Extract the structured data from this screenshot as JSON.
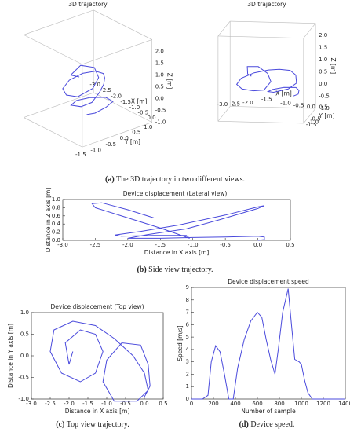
{
  "chart_data": [
    {
      "type": "line3d",
      "title": "3D trajectory",
      "color": "#4a4adc",
      "x": [
        -1.9,
        -2.0,
        -2.1,
        -1.7,
        -1.3,
        -1.1,
        -1.3,
        -1.7,
        -2.2,
        -2.5,
        -2.4,
        -1.9,
        -1.3,
        -0.8,
        -0.3,
        0.0,
        0.1,
        -0.2,
        -0.8,
        -1.1,
        -1.0,
        -0.6,
        -0.1,
        0.1,
        0.15,
        0.0
      ],
      "y": [
        0.1,
        -0.2,
        0.3,
        0.6,
        0.5,
        0.1,
        -0.4,
        -0.6,
        -0.4,
        0.1,
        0.6,
        0.8,
        0.7,
        0.4,
        0.0,
        -0.4,
        -0.8,
        -1.05,
        -1.05,
        -0.6,
        -0.1,
        0.3,
        0.25,
        -0.2,
        -0.7,
        -0.95
      ],
      "z": [
        0.55,
        0.7,
        0.9,
        0.85,
        0.6,
        0.35,
        0.1,
        0.1,
        0.12,
        0.2,
        0.35,
        0.55,
        0.7,
        0.8,
        0.85,
        0.75,
        0.5,
        0.3,
        0.15,
        0.08,
        0.07,
        0.08,
        0.1,
        0.08,
        0.03,
        0.0
      ],
      "xlim": [
        -3,
        0.5
      ],
      "ylim": [
        -1.5,
        1.5
      ],
      "zlim": [
        -1,
        2.5
      ],
      "xticks": [
        {
          "value": -3,
          "label": "-3.0"
        },
        -2.5,
        {
          "value": -2,
          "label": "-2.0"
        },
        -1.5,
        {
          "value": -1,
          "label": "-1.0"
        },
        -0.5,
        {
          "value": 0,
          "label": "0.0"
        }
      ],
      "yticks": [
        -1.5,
        {
          "value": -1,
          "label": "-1.0"
        },
        -0.5,
        {
          "value": 0,
          "label": "0.0"
        },
        0.5,
        {
          "value": 1,
          "label": "1.0"
        }
      ],
      "zticks": [
        {
          "value": -1,
          "label": "-1.0"
        },
        -0.5,
        {
          "value": 0,
          "label": "0.0"
        },
        0.5,
        {
          "value": 1,
          "label": "1.0"
        },
        1.5,
        {
          "value": 2,
          "label": "2.0"
        }
      ],
      "xlabel": "X [m]",
      "ylabel": "Y [m]",
      "zlabel": "Z [m]"
    },
    {
      "type": "line3d",
      "title": "3D trajectory",
      "color": "#4a4adc",
      "x": [
        -1.9,
        -2.0,
        -2.1,
        -1.7,
        -1.3,
        -1.1,
        -1.3,
        -1.7,
        -2.2,
        -2.5,
        -2.4,
        -1.9,
        -1.3,
        -0.8,
        -0.3,
        0.0,
        0.1,
        -0.2,
        -0.8,
        -1.1,
        -1.0,
        -0.6,
        -0.1,
        0.1,
        0.15,
        0.0
      ],
      "y": [
        0.1,
        -0.2,
        0.3,
        0.6,
        0.5,
        0.1,
        -0.4,
        -0.6,
        -0.4,
        0.1,
        0.6,
        0.8,
        0.7,
        0.4,
        0.0,
        -0.4,
        -0.8,
        -1.05,
        -1.05,
        -0.6,
        -0.1,
        0.3,
        0.25,
        -0.2,
        -0.7,
        -0.95
      ],
      "z": [
        0.55,
        0.7,
        0.9,
        0.85,
        0.6,
        0.35,
        0.1,
        0.1,
        0.12,
        0.2,
        0.35,
        0.55,
        0.7,
        0.8,
        0.85,
        0.75,
        0.5,
        0.3,
        0.15,
        0.08,
        0.07,
        0.08,
        0.1,
        0.08,
        0.03,
        0.0
      ],
      "xlim": [
        -3,
        0.5
      ],
      "ylim": [
        -1.5,
        1.5
      ],
      "zlim": [
        -1,
        2.5
      ],
      "xticks": [
        {
          "value": -3,
          "label": "-3.0"
        },
        -2.5,
        {
          "value": -2,
          "label": "-2.0"
        },
        -1.5,
        {
          "value": -1,
          "label": "-1.0"
        },
        -0.5,
        {
          "value": 0,
          "label": "0.0"
        },
        0.5
      ],
      "yticks": [
        -1.5,
        {
          "value": -1,
          "label": "-1.0"
        },
        -0.5
      ],
      "zticks": [
        {
          "value": -1,
          "label": "-1.0"
        },
        -0.5,
        {
          "value": 0,
          "label": "0.0"
        },
        0.5,
        {
          "value": 1,
          "label": "1.0"
        },
        1.5,
        {
          "value": 2,
          "label": "2.0"
        }
      ],
      "xlabel": "X [m]",
      "ylabel": "Y [m]",
      "zlabel": "Z [m]"
    },
    {
      "type": "line",
      "title": "Device displacement (Lateral view)",
      "x": [
        -1.6,
        -2.0,
        -2.4,
        -2.55,
        -2.5,
        -2.0,
        -1.5,
        -1.05,
        -1.1,
        -1.6,
        -2.1,
        -2.2,
        -1.8,
        -1.2,
        -0.5,
        0.0,
        0.1,
        0.0,
        -0.6,
        -1.1,
        -1.7,
        -2.0,
        -1.5,
        -1.0,
        -0.5,
        0.0,
        0.1,
        0.1,
        0.0
      ],
      "series": [
        {
          "color": "#4a4adc",
          "values": [
            0.55,
            0.75,
            0.92,
            0.9,
            0.8,
            0.55,
            0.3,
            0.05,
            0.12,
            0.12,
            0.1,
            0.13,
            0.22,
            0.38,
            0.62,
            0.82,
            0.85,
            0.78,
            0.5,
            0.28,
            0.14,
            0.05,
            0.05,
            0.07,
            0.08,
            0.1,
            0.08,
            0.02,
            0.0
          ]
        }
      ],
      "xlim": [
        -3,
        0.5
      ],
      "ylim": [
        0,
        1
      ],
      "xticks": [
        {
          "value": -3,
          "label": "-3.0"
        },
        -2.5,
        {
          "value": -2,
          "label": "-2.0"
        },
        -1.5,
        {
          "value": -1,
          "label": "-1.0"
        },
        -0.5,
        {
          "value": 0,
          "label": "0.0"
        },
        0.5
      ],
      "yticks": [
        {
          "value": 0,
          "label": "0.0"
        },
        0.2,
        0.4,
        0.6,
        0.8,
        {
          "value": 1,
          "label": "1.0"
        }
      ],
      "xlabel": "Distance in X axis [m]",
      "ylabel": "Distance in Z axis [m]"
    },
    {
      "type": "line",
      "title": "Device displacement (Top view)",
      "x": [
        -1.9,
        -2.0,
        -2.1,
        -1.7,
        -1.3,
        -1.1,
        -1.3,
        -1.7,
        -2.2,
        -2.5,
        -2.4,
        -1.9,
        -1.3,
        -0.8,
        -0.3,
        0.0,
        0.1,
        -0.2,
        -0.8,
        -1.1,
        -1.0,
        -0.6,
        -0.1,
        0.1,
        0.15,
        0.0
      ],
      "series": [
        {
          "color": "#4a4adc",
          "values": [
            0.1,
            -0.2,
            0.3,
            0.6,
            0.5,
            0.1,
            -0.4,
            -0.6,
            -0.4,
            0.1,
            0.6,
            0.8,
            0.7,
            0.4,
            0.0,
            -0.4,
            -0.8,
            -1.05,
            -1.05,
            -0.6,
            -0.1,
            0.3,
            0.25,
            -0.2,
            -0.7,
            -0.95
          ]
        }
      ],
      "xlim": [
        -3,
        0.5
      ],
      "ylim": [
        -1,
        1
      ],
      "xticks": [
        {
          "value": -3,
          "label": "-3.0"
        },
        -2.5,
        {
          "value": -2,
          "label": "-2.0"
        },
        -1.5,
        {
          "value": -1,
          "label": "-1.0"
        },
        -0.5,
        {
          "value": 0,
          "label": "0.0"
        },
        0.5
      ],
      "yticks": [
        {
          "value": -1,
          "label": "-1.0"
        },
        -0.5,
        {
          "value": 0,
          "label": "0.0"
        },
        0.5,
        {
          "value": 1,
          "label": "1.0"
        }
      ],
      "xlabel": "Distance in X axis [m]",
      "ylabel": "Distance in Y axis [m]"
    },
    {
      "type": "line",
      "title": "Device displacement speed",
      "x": [
        0,
        100,
        150,
        180,
        220,
        260,
        300,
        340,
        350,
        380,
        420,
        480,
        540,
        600,
        640,
        680,
        720,
        760,
        790,
        830,
        880,
        910,
        940,
        980,
        1000,
        1030,
        1060,
        1100,
        1400
      ],
      "series": [
        {
          "color": "#4a4adc",
          "values": [
            0,
            0,
            0.3,
            3.0,
            4.3,
            3.8,
            2.0,
            0,
            0,
            0,
            2.5,
            4.8,
            6.3,
            7.0,
            6.6,
            4.8,
            3.2,
            2.0,
            4.0,
            7.0,
            8.9,
            6.0,
            3.2,
            3.0,
            2.8,
            1.5,
            0.5,
            0,
            0
          ]
        }
      ],
      "xlim": [
        0,
        1400
      ],
      "ylim": [
        0,
        9
      ],
      "xticks": [
        0,
        200,
        400,
        600,
        800,
        1000,
        1200,
        1400
      ],
      "yticks": [
        0,
        1,
        2,
        3,
        4,
        5,
        6,
        7,
        8,
        9
      ],
      "xlabel": "Number of sample",
      "ylabel": "Speed [m/s]"
    }
  ],
  "captions": [
    {
      "label": "(a)",
      "text": "The 3D trajectory in two different views."
    },
    {
      "label": "(b)",
      "text": "Side view trajectory."
    },
    {
      "label": "(c)",
      "text": "Top view trajectory."
    },
    {
      "label": "(d)",
      "text": "Device speed."
    }
  ]
}
